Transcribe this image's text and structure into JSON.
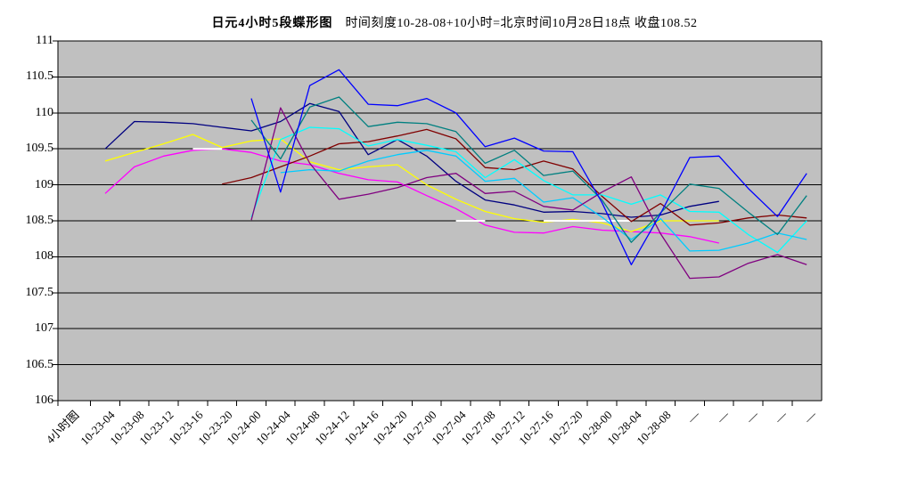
{
  "title": {
    "bold": "日元4小时5段蝶形图",
    "rest": "时间刻度10-28-08+10小时=北京时间10月28日18点  收盘108.52"
  },
  "corner_label": "4小时图",
  "close_value": "108.52",
  "chart_data": {
    "type": "line",
    "title": "日元4小时5段蝶形图",
    "subtitle": "时间刻度10-28-08+10小时=北京时间10月28日18点  收盘108.52",
    "xlabel": "",
    "ylabel": "",
    "ylim": [
      106,
      111
    ],
    "y_tick_step": 0.5,
    "y_tick_labels": [
      "111",
      "110.5",
      "110",
      "109.5",
      "109",
      "108.5",
      "108",
      "107.5",
      "107",
      "106.5",
      "106"
    ],
    "grid": true,
    "legend": "none",
    "plot_bg": "#c0c0c0",
    "grid_color": "#000000",
    "categories": [
      "10-23-04",
      "10-23-08",
      "10-23-12",
      "10-23-16",
      "10-23-20",
      "10-24-00",
      "10-24-04",
      "10-24-08",
      "10-24-12",
      "10-24-16",
      "10-24-20",
      "10-27-00",
      "10-27-04",
      "10-27-08",
      "10-27-12",
      "10-27-16",
      "10-27-20",
      "10-28-00",
      "10-28-04",
      "10-28-08",
      "—",
      "—",
      "—",
      "—",
      "—"
    ],
    "series": [
      {
        "name": "series-navy",
        "color": "#000080",
        "values": [
          109.5,
          109.88,
          109.87,
          109.85,
          109.8,
          109.75,
          109.88,
          110.13,
          110.02,
          109.42,
          109.63,
          109.4,
          109.05,
          108.79,
          108.72,
          108.62,
          108.63,
          108.6,
          108.55,
          108.58,
          108.7,
          108.77,
          null,
          null,
          null
        ]
      },
      {
        "name": "series-magenta",
        "color": "#FF00FF",
        "values": [
          108.88,
          109.25,
          109.4,
          109.48,
          109.5,
          109.45,
          109.33,
          109.28,
          109.16,
          109.07,
          109.04,
          108.85,
          108.67,
          108.44,
          108.34,
          108.33,
          108.42,
          108.37,
          108.35,
          108.33,
          108.28,
          108.19,
          null,
          null,
          null
        ]
      },
      {
        "name": "series-yellow",
        "color": "#FFFF00",
        "values": [
          109.33,
          109.45,
          109.57,
          109.7,
          109.52,
          109.61,
          109.64,
          109.32,
          109.21,
          109.25,
          109.28,
          109.0,
          108.8,
          108.63,
          108.53,
          108.48,
          108.52,
          108.47,
          108.35,
          108.5,
          108.5,
          108.5,
          null,
          null,
          null
        ]
      },
      {
        "name": "series-white",
        "color": "#FFFFFF",
        "values": [
          null,
          null,
          null,
          109.5,
          109.5,
          null,
          null,
          null,
          null,
          null,
          null,
          null,
          108.5,
          108.5,
          null,
          108.5,
          108.5,
          108.5,
          108.5,
          null,
          null,
          null,
          null,
          null,
          null
        ]
      },
      {
        "name": "series-maroon",
        "color": "#800000",
        "values": [
          null,
          null,
          null,
          null,
          109.01,
          109.1,
          109.25,
          109.4,
          109.57,
          109.6,
          109.68,
          109.77,
          109.64,
          109.24,
          109.21,
          109.33,
          109.22,
          108.84,
          108.49,
          108.74,
          108.44,
          108.47,
          108.54,
          108.58,
          108.54
        ]
      },
      {
        "name": "series-cyan",
        "color": "#00FFFF",
        "values": [
          null,
          null,
          null,
          null,
          null,
          108.55,
          109.63,
          109.8,
          109.78,
          109.54,
          109.63,
          109.55,
          109.46,
          109.1,
          109.35,
          109.06,
          108.86,
          108.86,
          108.73,
          108.86,
          108.63,
          108.62,
          108.31,
          108.06,
          108.5
        ]
      },
      {
        "name": "series-skyblue",
        "color": "#00CCFF",
        "values": [
          null,
          null,
          null,
          null,
          null,
          null,
          109.17,
          109.21,
          109.19,
          109.33,
          109.42,
          109.48,
          109.4,
          109.05,
          109.09,
          108.76,
          108.82,
          108.55,
          108.24,
          108.53,
          108.08,
          108.09,
          108.19,
          108.33,
          108.24
        ]
      },
      {
        "name": "series-purple",
        "color": "#800080",
        "values": [
          null,
          null,
          null,
          null,
          null,
          108.51,
          110.07,
          109.3,
          108.8,
          108.87,
          108.96,
          109.1,
          109.16,
          108.88,
          108.91,
          108.7,
          108.65,
          108.9,
          109.11,
          108.32,
          107.7,
          107.72,
          107.91,
          108.03,
          107.89
        ]
      },
      {
        "name": "series-teal",
        "color": "#008080",
        "values": [
          null,
          null,
          null,
          null,
          null,
          109.9,
          109.36,
          110.08,
          110.22,
          109.81,
          109.87,
          109.85,
          109.74,
          109.3,
          109.48,
          109.13,
          109.19,
          108.79,
          108.2,
          108.61,
          109.01,
          108.95,
          108.62,
          108.31,
          108.85
        ]
      },
      {
        "name": "series-blue",
        "color": "#0000FF",
        "values": [
          null,
          null,
          null,
          null,
          null,
          110.2,
          108.9,
          110.38,
          110.6,
          110.12,
          110.1,
          110.2,
          110.0,
          109.53,
          109.65,
          109.47,
          109.46,
          108.75,
          107.89,
          108.6,
          109.38,
          109.4,
          108.95,
          108.56,
          109.16
        ]
      }
    ]
  }
}
